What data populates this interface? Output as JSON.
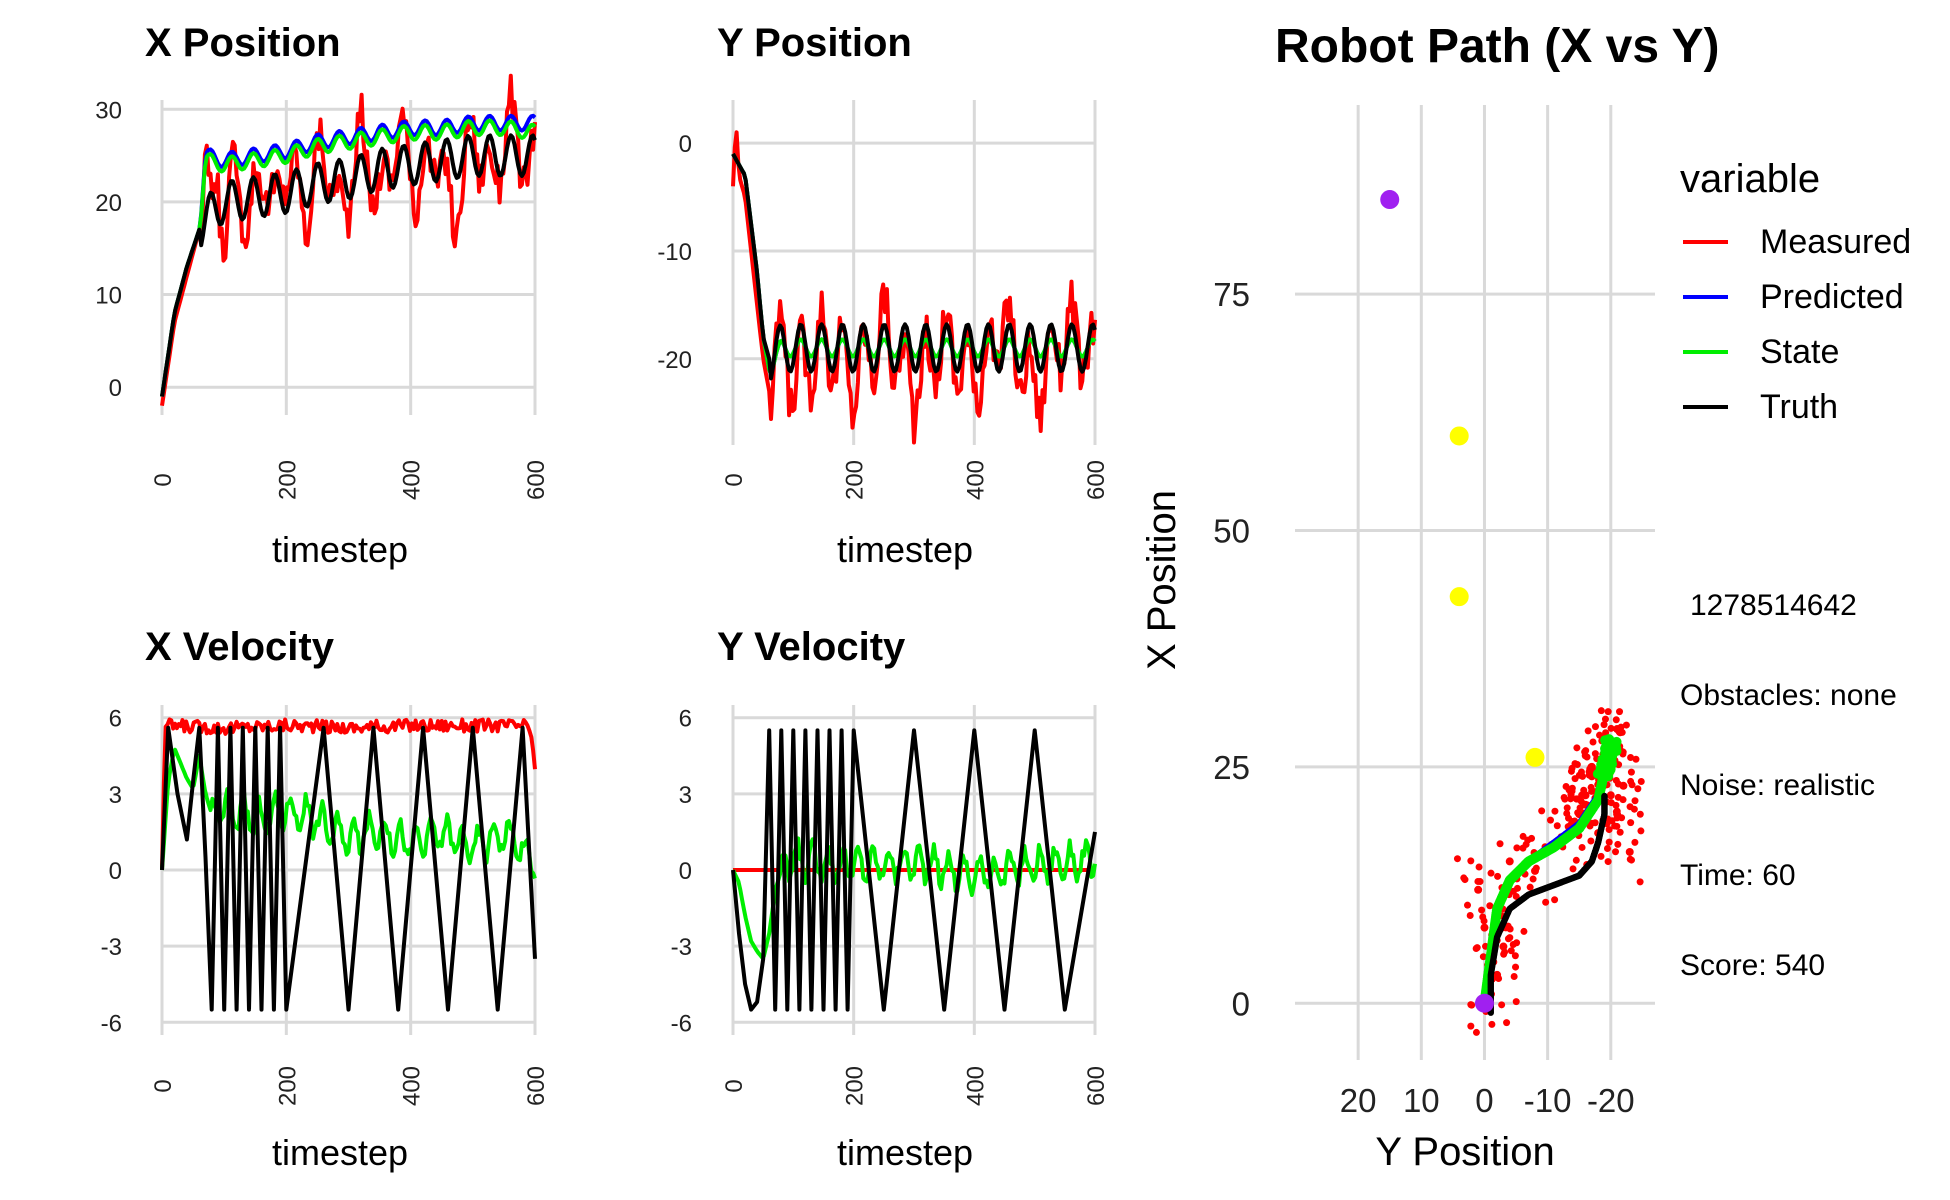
{
  "chart_data": [
    {
      "id": "xpos",
      "type": "line",
      "title": "X Position",
      "xlabel": "timestep",
      "ylabel": "",
      "xlim": [
        0,
        600
      ],
      "ylim": [
        -3,
        31
      ],
      "xticks": [
        0,
        200,
        400,
        600
      ],
      "yticks": [
        0,
        10,
        20,
        30
      ],
      "series": [
        {
          "name": "Measured",
          "color": "#ff0000",
          "x": [
            0,
            20,
            40,
            60,
            70,
            80,
            90,
            100,
            120,
            140,
            160,
            180,
            200,
            230,
            260,
            290,
            320,
            350,
            380,
            410,
            440,
            470,
            500,
            530,
            560,
            590,
            600
          ],
          "y": [
            -2,
            7,
            12,
            17,
            24,
            18,
            23,
            16,
            24,
            17,
            25,
            18,
            25,
            19,
            26,
            18,
            27,
            20,
            28,
            21,
            26,
            18,
            28,
            22,
            29,
            23,
            25
          ]
        },
        {
          "name": "Predicted",
          "color": "#0000ff",
          "x": [
            0,
            20,
            40,
            60,
            70,
            100,
            150,
            200,
            250,
            300,
            350,
            400,
            450,
            500,
            550,
            600
          ],
          "y": [
            -1,
            8,
            13,
            17,
            25,
            24.5,
            25,
            25.5,
            26.5,
            27,
            27.5,
            28,
            28,
            28.5,
            28.5,
            28.5
          ]
        },
        {
          "name": "State",
          "color": "#00ee00",
          "x": [
            0,
            20,
            40,
            60,
            70,
            100,
            150,
            200,
            250,
            300,
            350,
            400,
            450,
            500,
            550,
            600
          ],
          "y": [
            -1,
            8,
            13,
            17,
            24.5,
            24,
            24.5,
            25,
            26,
            26.5,
            27,
            27.5,
            27.5,
            28,
            28,
            27.5
          ]
        },
        {
          "name": "Truth",
          "color": "#000000",
          "x": [
            0,
            20,
            40,
            60,
            80,
            100,
            150,
            200,
            250,
            300,
            350,
            400,
            450,
            500,
            550,
            600
          ],
          "y": [
            -1,
            8,
            13,
            17,
            19,
            20,
            20.5,
            21,
            22,
            22.5,
            23.5,
            24,
            24.5,
            25,
            25,
            25
          ]
        }
      ]
    },
    {
      "id": "ypos",
      "type": "line",
      "title": "Y Position",
      "xlabel": "timestep",
      "ylabel": "",
      "xlim": [
        0,
        600
      ],
      "ylim": [
        -28,
        4
      ],
      "xticks": [
        0,
        200,
        400,
        600
      ],
      "yticks": [
        0,
        -10,
        -20
      ],
      "series": [
        {
          "name": "Measured",
          "color": "#ff0000",
          "x": [
            0,
            5,
            10,
            20,
            30,
            40,
            50,
            60,
            80,
            100,
            150,
            200,
            250,
            300,
            350,
            400,
            450,
            500,
            550,
            600
          ],
          "y": [
            -4,
            2,
            -3,
            -5,
            -10,
            -15,
            -20,
            -23,
            -18,
            -22,
            -18,
            -22,
            -17,
            -23,
            -18,
            -22,
            -17,
            -23,
            -17,
            -20
          ]
        },
        {
          "name": "Predicted",
          "color": "#0000ff",
          "x": [
            0,
            20,
            40,
            50,
            60,
            80,
            100,
            200,
            300,
            400,
            500,
            600
          ],
          "y": [
            -1,
            -3,
            -12,
            -18,
            -21,
            -19,
            -19,
            -19,
            -19,
            -19,
            -19,
            -19
          ]
        },
        {
          "name": "State",
          "color": "#00ee00",
          "x": [
            0,
            20,
            40,
            50,
            60,
            80,
            100,
            200,
            300,
            400,
            500,
            600
          ],
          "y": [
            -1,
            -3,
            -12,
            -18,
            -21,
            -19,
            -19,
            -19,
            -19,
            -19,
            -19,
            -19
          ]
        },
        {
          "name": "Truth",
          "color": "#000000",
          "x": [
            0,
            20,
            40,
            50,
            60,
            80,
            100,
            200,
            300,
            400,
            500,
            600
          ],
          "y": [
            -1,
            -3,
            -12,
            -18,
            -20,
            -19,
            -19,
            -19,
            -19,
            -19,
            -19,
            -19
          ]
        }
      ]
    },
    {
      "id": "xvel",
      "type": "line",
      "title": "X Velocity",
      "xlabel": "timestep",
      "ylabel": "",
      "xlim": [
        0,
        600
      ],
      "ylim": [
        -6.5,
        6.5
      ],
      "xticks": [
        0,
        200,
        400,
        600
      ],
      "yticks": [
        6,
        3,
        0,
        -3,
        -6
      ],
      "series": [
        {
          "name": "Measured",
          "color": "#ff0000",
          "x": [
            0,
            5,
            100,
            200,
            300,
            400,
            500,
            590,
            600
          ],
          "y": [
            0,
            5.7,
            5.6,
            5.7,
            5.6,
            5.7,
            5.7,
            5.7,
            4
          ]
        },
        {
          "name": "State",
          "color": "#00ee00",
          "x": [
            0,
            10,
            20,
            30,
            40,
            50,
            60,
            70,
            80,
            100,
            150,
            200,
            250,
            300,
            350,
            400,
            450,
            500,
            550,
            600
          ],
          "y": [
            0,
            3.5,
            4.8,
            4.2,
            3.6,
            3.2,
            4.5,
            3.0,
            2.2,
            2.5,
            2.0,
            2.4,
            2.0,
            1.2,
            1.6,
            1.0,
            1.5,
            0.9,
            1.5,
            0.3
          ]
        },
        {
          "name": "Truth",
          "color": "#000000",
          "x": [
            0,
            10,
            25,
            40,
            50,
            60,
            70,
            80,
            90,
            100,
            110,
            120,
            130,
            140,
            150,
            160,
            170,
            180,
            190,
            200,
            260,
            300,
            340,
            380,
            420,
            460,
            500,
            540,
            580,
            600
          ],
          "y": [
            0,
            5.6,
            3.0,
            1.2,
            3.5,
            5.6,
            0.5,
            -5.5,
            5.6,
            -5.5,
            5.6,
            -5.5,
            5.6,
            -5.5,
            5.6,
            -5.5,
            5.6,
            -5.5,
            5.6,
            -5.5,
            5.6,
            -5.5,
            5.6,
            -5.5,
            5.6,
            -5.5,
            5.6,
            -5.5,
            5.6,
            -3.5
          ]
        }
      ]
    },
    {
      "id": "yvel",
      "type": "line",
      "title": "Y Velocity",
      "xlabel": "timestep",
      "ylabel": "",
      "xlim": [
        0,
        600
      ],
      "ylim": [
        -6.5,
        6.5
      ],
      "xticks": [
        0,
        200,
        400,
        600
      ],
      "yticks": [
        6,
        3,
        0,
        -3,
        -6
      ],
      "series": [
        {
          "name": "Measured",
          "color": "#ff0000",
          "x": [
            0,
            600
          ],
          "y": [
            0,
            0
          ]
        },
        {
          "name": "State",
          "color": "#00ee00",
          "x": [
            0,
            10,
            20,
            30,
            40,
            50,
            60,
            70,
            80,
            100,
            200,
            300,
            400,
            500,
            600
          ],
          "y": [
            0,
            -0.5,
            -1.8,
            -2.8,
            -3.2,
            -3.5,
            -2.5,
            -0.8,
            0,
            0.4,
            0.2,
            0.3,
            -0.2,
            0.2,
            0.4
          ]
        },
        {
          "name": "Truth",
          "color": "#000000",
          "x": [
            0,
            10,
            20,
            30,
            40,
            50,
            60,
            70,
            80,
            90,
            100,
            110,
            120,
            130,
            140,
            150,
            160,
            170,
            180,
            190,
            200,
            250,
            300,
            350,
            400,
            450,
            500,
            550,
            600
          ],
          "y": [
            0,
            -2.5,
            -4.5,
            -5.5,
            -5.2,
            -3.5,
            5.5,
            -5.5,
            5.5,
            -5.5,
            5.5,
            -5.5,
            5.5,
            -5.5,
            5.5,
            -5.5,
            5.5,
            -5.5,
            5.5,
            -5.5,
            5.5,
            -5.5,
            5.5,
            -5.5,
            5.5,
            -5.5,
            5.5,
            -5.5,
            1.5
          ]
        }
      ]
    },
    {
      "id": "path",
      "type": "scatter",
      "title": "Robot Path (X vs Y)",
      "xlabel": "Y Position",
      "ylabel": "X Position",
      "xlim": [
        30,
        -27
      ],
      "ylim": [
        -6,
        95
      ],
      "xticks": [
        20,
        10,
        0,
        -10,
        -20
      ],
      "yticks": [
        0,
        25,
        50,
        75
      ],
      "x_reversed": true,
      "legend_title": "variable",
      "legend_placement": "right",
      "series": [
        {
          "name": "Measured",
          "color": "#ff0000",
          "x": [
            0,
            -2,
            0,
            -3,
            1,
            -2,
            -4,
            -8,
            -12,
            -15,
            -16,
            -18,
            -20,
            -17,
            -19,
            -21,
            -18,
            -20,
            -22,
            -16,
            -14,
            -19,
            -23,
            -17,
            -21
          ],
          "y": [
            0,
            3,
            8,
            6,
            12,
            10,
            15,
            14,
            17,
            20,
            22,
            24,
            22,
            25,
            27,
            20,
            18,
            26,
            23,
            21,
            19,
            28,
            16,
            24,
            29
          ]
        },
        {
          "name": "Predicted",
          "color": "#0000ff",
          "x": [
            0,
            -1,
            -2,
            -4,
            -7,
            -11,
            -15,
            -18,
            -19,
            -20,
            -20
          ],
          "y": [
            0,
            5,
            10,
            13,
            15,
            17,
            19,
            22,
            25,
            27,
            28
          ]
        },
        {
          "name": "State",
          "color": "#00ee00",
          "x": [
            0,
            -1,
            -2,
            -4,
            -7,
            -11,
            -15,
            -18,
            -19,
            -20,
            -20
          ],
          "y": [
            0,
            5,
            10,
            13,
            15,
            16.5,
            18.5,
            21.5,
            24.5,
            26.5,
            28
          ]
        },
        {
          "name": "Truth",
          "color": "#000000",
          "x": [
            -1,
            -1,
            -2,
            -4,
            -7,
            -11,
            -15,
            -17,
            -18,
            -19,
            -19
          ],
          "y": [
            -1,
            3,
            7,
            10,
            11.5,
            12.5,
            13.5,
            15,
            17,
            20,
            22
          ]
        }
      ],
      "markers": [
        {
          "kind": "start",
          "color": "#a020f0",
          "x": 0,
          "y": 0
        },
        {
          "kind": "goal",
          "color": "#a020f0",
          "x": 15,
          "y": 85
        },
        {
          "kind": "waypoint",
          "color": "#ffff00",
          "x": 4,
          "y": 60
        },
        {
          "kind": "waypoint",
          "color": "#ffff00",
          "x": 4,
          "y": 43
        },
        {
          "kind": "waypoint",
          "color": "#ffff00",
          "x": -8,
          "y": 26
        }
      ]
    }
  ],
  "legend": {
    "title": "variable",
    "entries": [
      {
        "name": "Measured",
        "color": "#ff0000"
      },
      {
        "name": "Predicted",
        "color": "#0000ff"
      },
      {
        "name": "State",
        "color": "#00ee00"
      },
      {
        "name": "Truth",
        "color": "#000000"
      }
    ]
  },
  "info": {
    "seed": "1278514642",
    "obstacles": "Obstacles: none",
    "noise": "Noise: realistic",
    "time": "Time: 60",
    "score": "Score: 540"
  }
}
